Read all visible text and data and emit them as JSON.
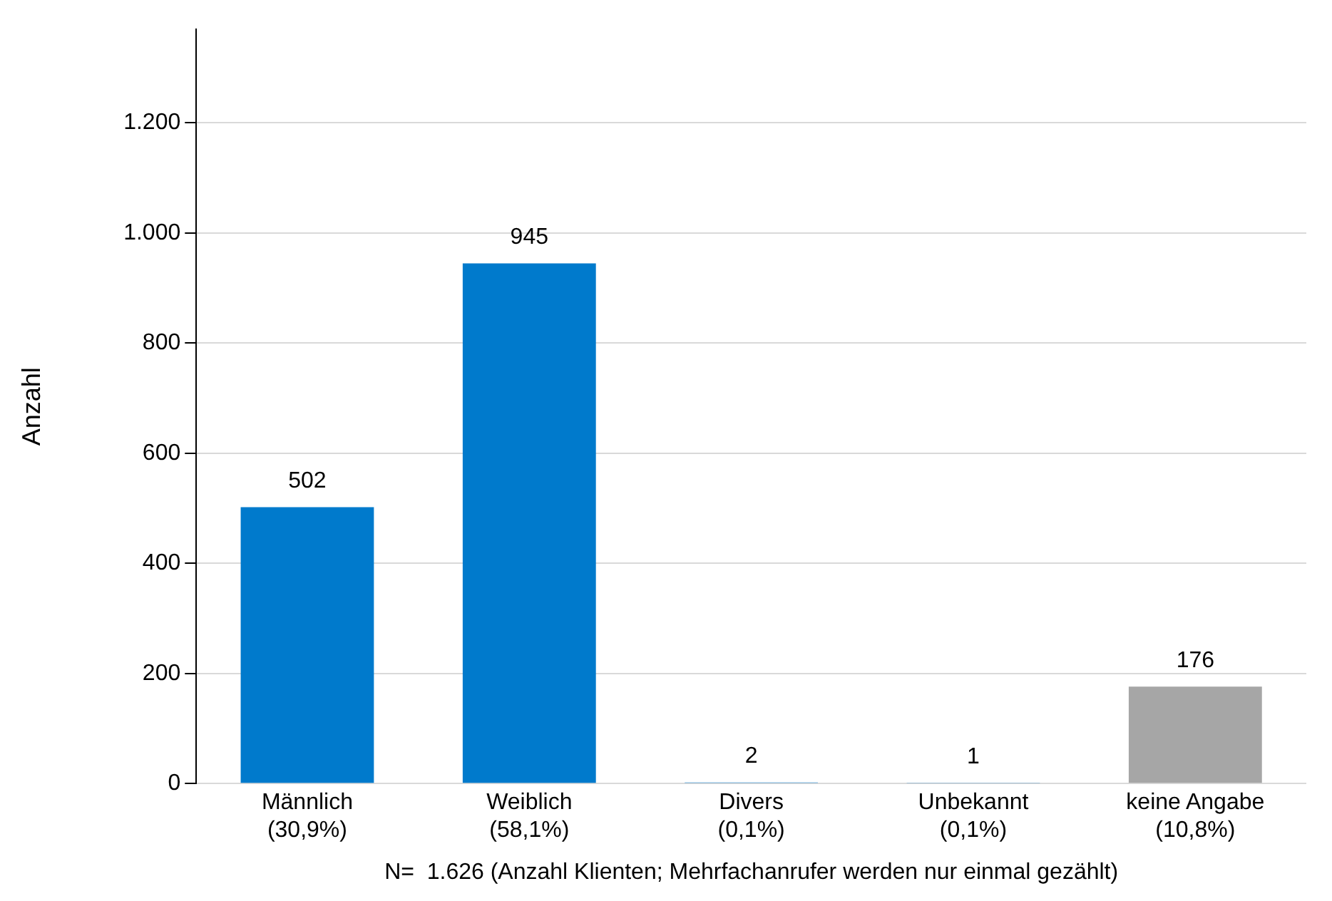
{
  "chart_data": {
    "type": "bar",
    "ylabel": "Anzahl",
    "categories": [
      "Männlich\n(30,9%)",
      "Weiblich\n(58,1%)",
      "Divers\n(0,1%)",
      "Unbekannt\n(0,1%)",
      "keine Angabe\n(10,8%)"
    ],
    "values": [
      502,
      945,
      2,
      1,
      176
    ],
    "colors": [
      "#007acc",
      "#007acc",
      "#007acc",
      "#007acc",
      "#a6a6a6"
    ],
    "ylim": [
      0,
      1370
    ],
    "yticks": [
      0,
      200,
      400,
      600,
      800,
      {
        "value": 1000,
        "label": "1.000"
      },
      {
        "value": 1200,
        "label": "1.200"
      }
    ],
    "grid": "y",
    "data_labels": true,
    "annotations": [
      "N=  1.626 (Anzahl Klienten; Mehrfachanrufer werden nur einmal gezählt)"
    ]
  }
}
